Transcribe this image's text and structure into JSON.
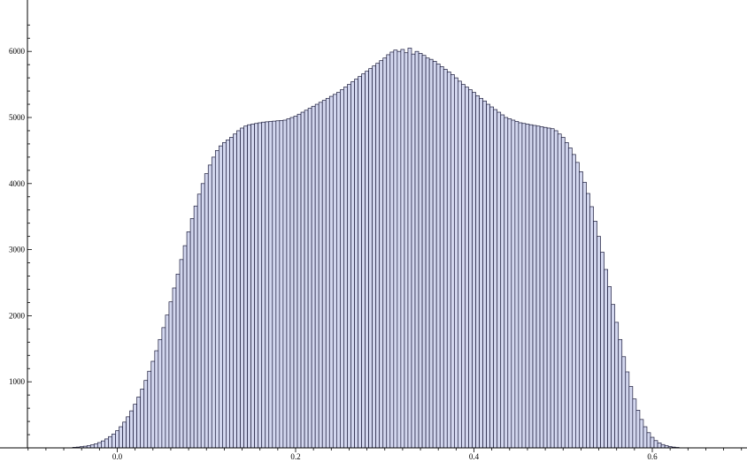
{
  "chart_data": {
    "type": "bar",
    "title": "",
    "xlabel": "",
    "ylabel": "",
    "xlim": [
      -0.1,
      0.7
    ],
    "ylim": [
      0,
      6600
    ],
    "x_tick_labels": [
      "0.0",
      "0.2",
      "0.4",
      "0.6"
    ],
    "x_ticks": [
      0.0,
      0.2,
      0.4,
      0.6
    ],
    "y_tick_labels": [
      "1000",
      "2000",
      "3000",
      "4000",
      "5000",
      "6000"
    ],
    "y_ticks": [
      1000,
      2000,
      3000,
      4000,
      5000,
      6000
    ],
    "grid": false,
    "legend": "none",
    "bar_fill": "#d3d7ef",
    "bar_stroke": "#1a1a3a",
    "axis_color": "#000000",
    "bins": {
      "start": -0.05,
      "width": 0.004
    },
    "values": [
      8,
      12,
      18,
      25,
      34,
      45,
      60,
      80,
      105,
      135,
      170,
      210,
      260,
      320,
      390,
      470,
      560,
      660,
      770,
      890,
      1020,
      1160,
      1310,
      1470,
      1640,
      1820,
      2010,
      2210,
      2420,
      2630,
      2850,
      3060,
      3270,
      3470,
      3660,
      3840,
      4000,
      4150,
      4280,
      4400,
      4500,
      4570,
      4620,
      4660,
      4700,
      4750,
      4800,
      4840,
      4870,
      4890,
      4900,
      4910,
      4920,
      4930,
      4935,
      4940,
      4945,
      4950,
      4955,
      4960,
      4980,
      5000,
      5020,
      5050,
      5080,
      5110,
      5140,
      5170,
      5200,
      5230,
      5260,
      5290,
      5320,
      5350,
      5380,
      5420,
      5460,
      5500,
      5540,
      5580,
      5620,
      5660,
      5700,
      5740,
      5780,
      5820,
      5860,
      5900,
      5950,
      5990,
      6020,
      6000,
      6030,
      5980,
      6050,
      5960,
      6000,
      5970,
      5940,
      5900,
      5880,
      5850,
      5810,
      5770,
      5730,
      5690,
      5650,
      5600,
      5550,
      5500,
      5460,
      5420,
      5380,
      5330,
      5290,
      5250,
      5200,
      5160,
      5120,
      5080,
      5040,
      5000,
      4980,
      4960,
      4940,
      4920,
      4910,
      4900,
      4890,
      4880,
      4870,
      4860,
      4850,
      4840,
      4830,
      4800,
      4750,
      4700,
      4620,
      4540,
      4440,
      4320,
      4180,
      4020,
      3850,
      3650,
      3430,
      3200,
      2960,
      2700,
      2440,
      2170,
      1900,
      1640,
      1380,
      1150,
      930,
      740,
      570,
      430,
      320,
      230,
      160,
      110,
      75,
      50,
      32,
      20,
      12,
      7
    ]
  }
}
